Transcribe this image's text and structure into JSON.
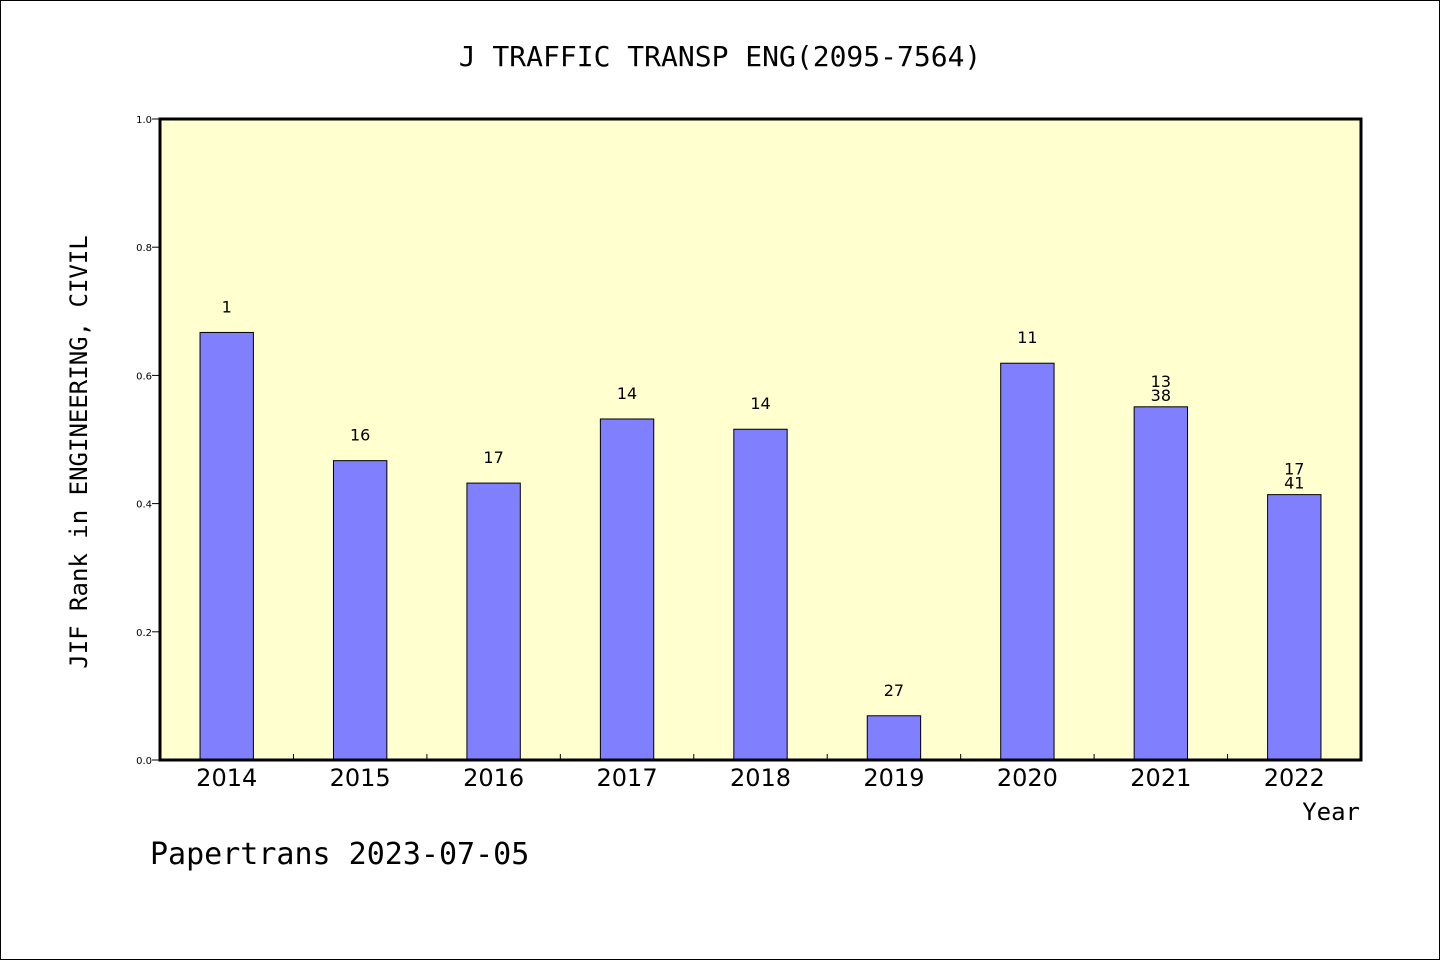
{
  "chart_data": {
    "type": "bar",
    "title": "J TRAFFIC TRANSP ENG(2095-7564)",
    "xlabel": "Year",
    "ylabel": "JIF Rank in ENGINEERING, CIVIL",
    "ylim": [
      0,
      1.0
    ],
    "yticks": [
      "0.0",
      "0.2",
      "0.4",
      "0.6",
      "0.8",
      "1.0"
    ],
    "categories": [
      "2014",
      "2015",
      "2016",
      "2017",
      "2018",
      "2019",
      "2020",
      "2021",
      "2022"
    ],
    "values": [
      0.667,
      0.467,
      0.432,
      0.532,
      0.516,
      0.069,
      0.619,
      0.551,
      0.414
    ],
    "bar_labels": [
      [
        "1"
      ],
      [
        "16"
      ],
      [
        "17"
      ],
      [
        "14"
      ],
      [
        "14"
      ],
      [
        "27"
      ],
      [
        "11"
      ],
      [
        "13",
        "38"
      ],
      [
        "17",
        "41"
      ]
    ],
    "grid": false,
    "colors": {
      "bar_fill": "#8080ff",
      "plot_background": "#ffffd0",
      "frame": "#000000"
    }
  },
  "footer": "Papertrans 2023-07-05"
}
